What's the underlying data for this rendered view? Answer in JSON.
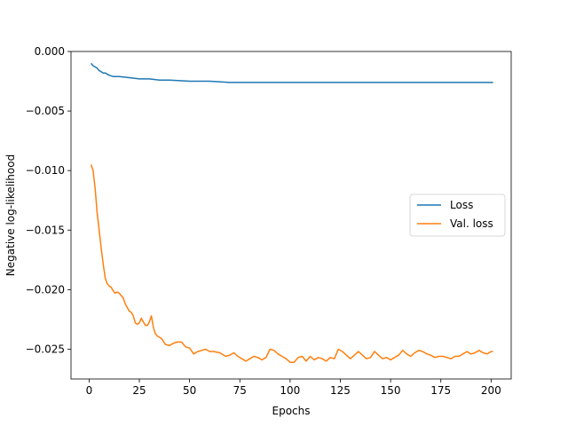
{
  "chart_data": {
    "type": "line",
    "title": "",
    "xlabel": "Epochs",
    "ylabel": "Negative log-likelihood",
    "xlim": [
      -9,
      210
    ],
    "ylim": [
      -0.0275,
      0.0
    ],
    "xticks": [
      0,
      25,
      50,
      75,
      100,
      125,
      150,
      175,
      200
    ],
    "xtick_labels": [
      "0",
      "25",
      "50",
      "75",
      "100",
      "125",
      "150",
      "175",
      "200"
    ],
    "yticks": [
      0.0,
      -0.005,
      -0.01,
      -0.015,
      -0.02,
      -0.025
    ],
    "ytick_labels": [
      "0.000",
      "−0.005",
      "−0.010",
      "−0.015",
      "−0.020",
      "−0.025"
    ],
    "grid": false,
    "legend": {
      "placement": "center-right",
      "entries": [
        "Loss",
        "Val. loss"
      ]
    },
    "series": [
      {
        "name": "Loss",
        "color": "#1f77b4",
        "x": [
          1,
          2,
          3,
          4,
          5,
          6,
          7,
          8,
          10,
          12,
          15,
          20,
          25,
          30,
          35,
          40,
          50,
          60,
          70,
          80,
          90,
          100,
          110,
          120,
          130,
          140,
          150,
          160,
          170,
          180,
          190,
          201
        ],
        "y": [
          -0.001,
          -0.0012,
          -0.0013,
          -0.0014,
          -0.0016,
          -0.0017,
          -0.0018,
          -0.0018,
          -0.002,
          -0.0021,
          -0.0021,
          -0.0022,
          -0.0023,
          -0.0023,
          -0.0024,
          -0.0024,
          -0.0025,
          -0.0025,
          -0.0026,
          -0.0026,
          -0.0026,
          -0.0026,
          -0.0026,
          -0.0026,
          -0.0026,
          -0.0026,
          -0.0026,
          -0.0026,
          -0.0026,
          -0.0026,
          -0.0026,
          -0.0026
        ]
      },
      {
        "name": "Val. loss",
        "color": "#ff7f0e",
        "x": [
          1,
          2,
          3,
          4,
          5,
          6,
          7,
          8,
          9,
          10,
          11,
          12,
          13,
          14,
          15,
          16,
          17,
          18,
          19,
          20,
          21,
          22,
          23,
          24,
          25,
          26,
          27,
          28,
          29,
          30,
          31,
          32,
          33,
          34,
          35,
          36,
          38,
          40,
          42,
          44,
          46,
          48,
          50,
          52,
          54,
          56,
          58,
          60,
          62,
          65,
          68,
          70,
          72,
          74,
          76,
          78,
          80,
          82,
          84,
          86,
          88,
          90,
          92,
          94,
          96,
          98,
          100,
          102,
          104,
          106,
          108,
          110,
          112,
          114,
          116,
          118,
          120,
          122,
          124,
          126,
          128,
          130,
          132,
          134,
          136,
          138,
          140,
          142,
          144,
          146,
          148,
          150,
          152,
          154,
          156,
          158,
          160,
          162,
          164,
          166,
          168,
          170,
          172,
          174,
          176,
          178,
          180,
          182,
          184,
          186,
          188,
          190,
          192,
          194,
          196,
          198,
          200,
          201
        ],
        "y": [
          -0.0095,
          -0.01,
          -0.0115,
          -0.0135,
          -0.015,
          -0.0165,
          -0.0178,
          -0.019,
          -0.0195,
          -0.0197,
          -0.0198,
          -0.0201,
          -0.0203,
          -0.0202,
          -0.0203,
          -0.0205,
          -0.0207,
          -0.0212,
          -0.0215,
          -0.0218,
          -0.0219,
          -0.0222,
          -0.0228,
          -0.0229,
          -0.0228,
          -0.0224,
          -0.0227,
          -0.023,
          -0.023,
          -0.0227,
          -0.0222,
          -0.0232,
          -0.0237,
          -0.0239,
          -0.024,
          -0.0241,
          -0.0246,
          -0.0247,
          -0.0245,
          -0.0244,
          -0.0244,
          -0.0248,
          -0.0249,
          -0.0254,
          -0.0252,
          -0.0251,
          -0.025,
          -0.0252,
          -0.0252,
          -0.0253,
          -0.0256,
          -0.0255,
          -0.0253,
          -0.0256,
          -0.0258,
          -0.026,
          -0.0258,
          -0.0256,
          -0.0257,
          -0.0259,
          -0.0257,
          -0.025,
          -0.0251,
          -0.0254,
          -0.0256,
          -0.0258,
          -0.0261,
          -0.0261,
          -0.0257,
          -0.0256,
          -0.026,
          -0.0256,
          -0.0259,
          -0.0257,
          -0.0258,
          -0.026,
          -0.0257,
          -0.0258,
          -0.025,
          -0.0252,
          -0.0255,
          -0.0258,
          -0.0255,
          -0.0252,
          -0.0255,
          -0.0258,
          -0.0257,
          -0.0252,
          -0.0255,
          -0.0258,
          -0.0257,
          -0.0259,
          -0.0257,
          -0.0255,
          -0.0251,
          -0.0254,
          -0.0256,
          -0.0253,
          -0.0251,
          -0.0252,
          -0.0254,
          -0.0255,
          -0.0257,
          -0.0256,
          -0.0256,
          -0.0257,
          -0.0258,
          -0.0256,
          -0.0256,
          -0.0254,
          -0.0252,
          -0.0254,
          -0.0253,
          -0.0251,
          -0.0253,
          -0.0254,
          -0.0252,
          -0.0252
        ]
      }
    ]
  }
}
